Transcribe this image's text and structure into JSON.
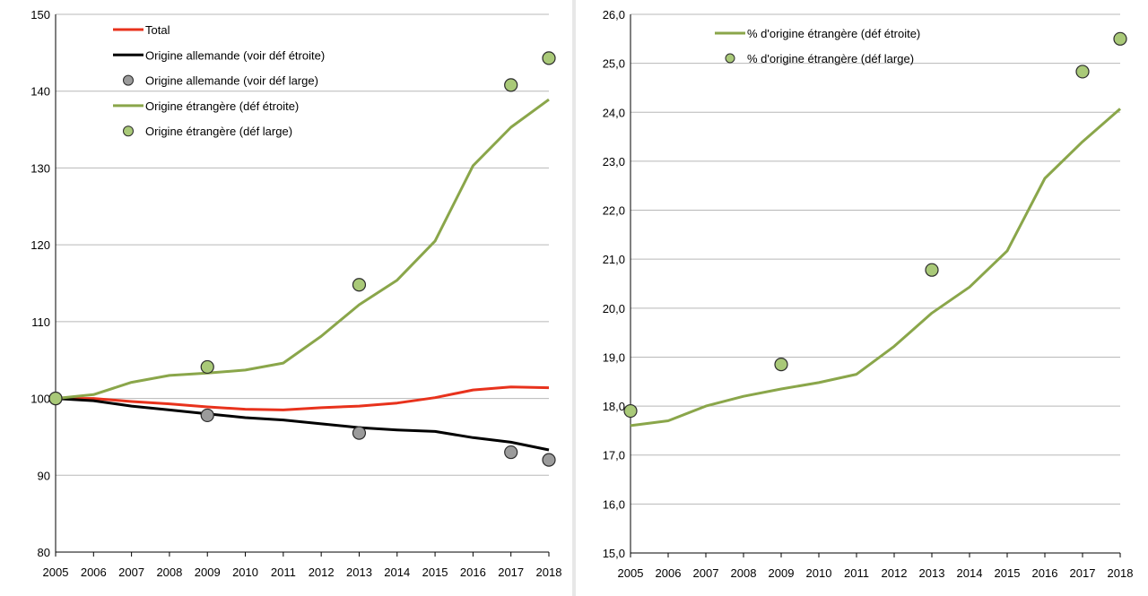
{
  "chart_data": [
    {
      "type": "line",
      "title": "",
      "xlabel": "",
      "ylabel": "",
      "x": [
        2005,
        2006,
        2007,
        2008,
        2009,
        2010,
        2011,
        2012,
        2013,
        2014,
        2015,
        2016,
        2017,
        2018
      ],
      "ylim": [
        80,
        150
      ],
      "yticks": [
        "80",
        "90",
        "100",
        "110",
        "120",
        "130",
        "140",
        "150"
      ],
      "ytick_values": [
        80,
        90,
        100,
        110,
        120,
        130,
        140,
        150
      ],
      "grid": true,
      "legend_position": "top-center",
      "series": [
        {
          "name": "Total",
          "kind": "line",
          "color": "#e8321c",
          "values": [
            100,
            100,
            99.6,
            99.3,
            98.9,
            98.6,
            98.5,
            98.8,
            99.0,
            99.4,
            100.1,
            101.1,
            101.5,
            101.4
          ]
        },
        {
          "name": "Origine allemande (voir déf étroite)",
          "kind": "line",
          "color": "#000000",
          "values": [
            100,
            99.7,
            99.0,
            98.5,
            98.0,
            97.5,
            97.2,
            96.7,
            96.2,
            95.9,
            95.7,
            94.9,
            94.3,
            93.3
          ]
        },
        {
          "name": "Origine allemande (voir déf large)",
          "kind": "points",
          "color": "#9b9b9b",
          "points": [
            [
              2005,
              100
            ],
            [
              2009,
              97.8
            ],
            [
              2013,
              95.5
            ],
            [
              2017,
              93.0
            ],
            [
              2018,
              92.0
            ]
          ]
        },
        {
          "name": "Origine étrangère (déf étroite)",
          "kind": "line",
          "color": "#8aa64a",
          "values": [
            100,
            100.5,
            102.1,
            103.0,
            103.3,
            103.7,
            104.6,
            108.1,
            112.2,
            115.4,
            120.5,
            130.3,
            135.3,
            138.9
          ]
        },
        {
          "name": "Origine étrangère (déf large)",
          "kind": "points",
          "color": "#a9c978",
          "points": [
            [
              2005,
              100
            ],
            [
              2009,
              104.1
            ],
            [
              2013,
              114.8
            ],
            [
              2017,
              140.8
            ],
            [
              2018,
              144.3
            ]
          ]
        }
      ]
    },
    {
      "type": "line",
      "title": "",
      "xlabel": "",
      "ylabel": "",
      "x": [
        2005,
        2006,
        2007,
        2008,
        2009,
        2010,
        2011,
        2012,
        2013,
        2014,
        2015,
        2016,
        2017,
        2018
      ],
      "ylim": [
        15.0,
        26.0
      ],
      "yticks": [
        "15,0",
        "16,0",
        "17,0",
        "18,0",
        "19,0",
        "20,0",
        "21,0",
        "22,0",
        "23,0",
        "24,0",
        "25,0",
        "26,0"
      ],
      "ytick_values": [
        15,
        16,
        17,
        18,
        19,
        20,
        21,
        22,
        23,
        24,
        25,
        26
      ],
      "grid": true,
      "legend_position": "top-center",
      "series": [
        {
          "name": "% d'origine étrangère (déf étroite)",
          "kind": "line",
          "color": "#8aa64a",
          "values": [
            17.6,
            17.7,
            18.0,
            18.2,
            18.35,
            18.48,
            18.65,
            19.22,
            19.9,
            20.43,
            21.17,
            22.65,
            23.4,
            24.07
          ]
        },
        {
          "name": "% d'origine étrangère (déf large)",
          "kind": "points",
          "color": "#a9c978",
          "points": [
            [
              2005,
              17.9
            ],
            [
              2009,
              18.85
            ],
            [
              2013,
              20.78
            ],
            [
              2017,
              24.83
            ],
            [
              2018,
              25.5
            ]
          ]
        }
      ]
    }
  ]
}
